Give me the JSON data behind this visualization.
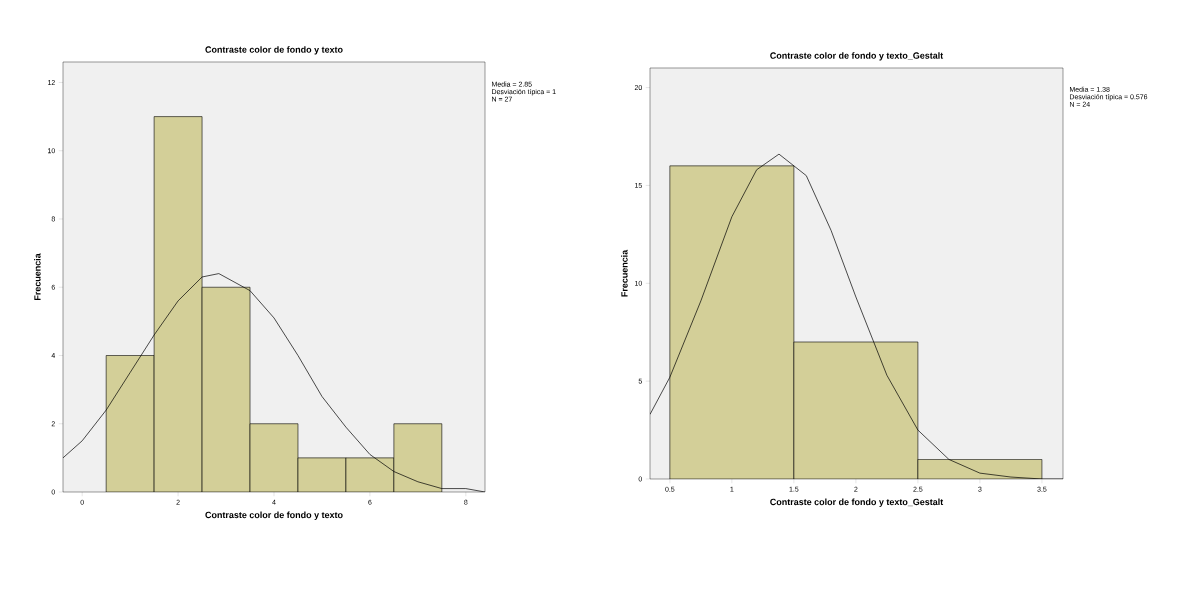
{
  "chart_data": [
    {
      "type": "histogram",
      "title": "Contraste color de fondo y texto",
      "xlabel": "Contraste color de fondo y texto",
      "ylabel": "Frecuencia",
      "bins": [
        0.5,
        1.5,
        2.5,
        3.5,
        4.5,
        5.5,
        6.5,
        7.5
      ],
      "values": [
        4,
        11,
        6,
        2,
        1,
        1,
        2
      ],
      "color": "#d3cf98",
      "series": [
        {
          "type": "line",
          "color": "#000000",
          "x": [
            -0.4,
            0,
            0.5,
            1,
            1.5,
            2,
            2.5,
            2.85,
            3.5,
            4,
            4.5,
            5,
            5.5,
            6,
            6.5,
            7,
            7.5,
            8,
            8.4
          ],
          "values": [
            1.0,
            1.5,
            2.4,
            3.5,
            4.6,
            5.6,
            6.3,
            6.4,
            5.9,
            5.1,
            4.0,
            2.8,
            1.9,
            1.1,
            0.6,
            0.3,
            0.1,
            0.1,
            0.0
          ]
        }
      ],
      "xlim": [
        -0.4,
        8.4
      ],
      "xticks": [
        0,
        2,
        4,
        6,
        8
      ],
      "ylim": [
        0,
        12.6
      ],
      "yticks": [
        0,
        2,
        4,
        6,
        8,
        10,
        12
      ],
      "annotations": [
        "Media = 2.85",
        "Desviación típica = 1",
        "N = 27"
      ]
    },
    {
      "type": "histogram",
      "title": "Contraste color de fondo y texto_Gestalt",
      "xlabel": "Contraste color de fondo y texto_Gestalt",
      "ylabel": "Frecuencia",
      "bins": [
        0.5,
        1.5,
        2.5,
        3.5
      ],
      "values": [
        16,
        7,
        1
      ],
      "color": "#d3cf98",
      "series": [
        {
          "type": "line",
          "color": "#000000",
          "x": [
            0.34,
            0.5,
            0.75,
            1.0,
            1.2,
            1.38,
            1.6,
            1.8,
            2.0,
            2.25,
            2.5,
            2.75,
            3.0,
            3.25,
            3.5,
            3.67
          ],
          "values": [
            3.3,
            5.2,
            9.1,
            13.4,
            15.8,
            16.6,
            15.5,
            12.7,
            9.3,
            5.3,
            2.5,
            1.0,
            0.3,
            0.1,
            0.0,
            0.0
          ]
        }
      ],
      "xlim": [
        0.34,
        3.67
      ],
      "xticks": [
        0.5,
        1,
        1.5,
        2,
        2.5,
        3,
        3.5
      ],
      "ylim": [
        0,
        21
      ],
      "yticks": [
        0,
        5,
        10,
        15,
        20
      ],
      "annotations": [
        "Media = 1.38",
        "Desviación típica = 0.576",
        "N = 24"
      ]
    }
  ]
}
